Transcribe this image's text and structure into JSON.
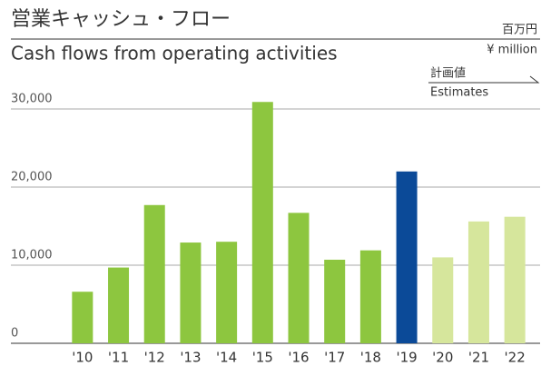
{
  "chart_data": {
    "type": "bar",
    "title": "営業キャッシュ・フロー",
    "subtitle": "Cash flows from operating activities",
    "unit_ja": "百万円",
    "unit_en": "¥ million",
    "legend_ja": "計画値",
    "legend_en": "Estimates",
    "categories": [
      "'10",
      "'11",
      "'12",
      "'13",
      "'14",
      "'15",
      "'16",
      "'17",
      "'18",
      "'19",
      "'20",
      "'21",
      "'22"
    ],
    "values": [
      6600,
      9700,
      17700,
      12900,
      13000,
      30900,
      16700,
      10700,
      11900,
      22000,
      11000,
      15600,
      16200
    ],
    "colors": [
      "#8dc63f",
      "#8dc63f",
      "#8dc63f",
      "#8dc63f",
      "#8dc63f",
      "#8dc63f",
      "#8dc63f",
      "#8dc63f",
      "#8dc63f",
      "#0b4a98",
      "#d6e69c",
      "#d6e69c",
      "#d6e69c"
    ],
    "ylim": [
      0,
      30000
    ],
    "yticks": [
      0,
      {
        "value": 10000,
        "label": "10,000"
      },
      {
        "value": 20000,
        "label": "20,000"
      },
      {
        "value": 30000,
        "label": "30,000"
      }
    ],
    "grid": true
  }
}
